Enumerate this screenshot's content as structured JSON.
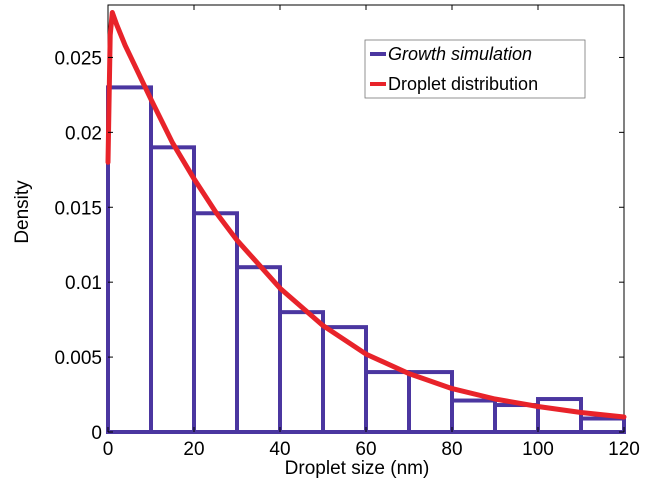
{
  "chart_data": {
    "type": "bar",
    "xlabel": "Droplet size (nm)",
    "ylabel": "Density",
    "xlim": [
      0,
      120
    ],
    "ylim": [
      0,
      0.0285
    ],
    "x_ticks": [
      0,
      20,
      40,
      60,
      80,
      100,
      120
    ],
    "x_tick_labels": [
      "0",
      "20",
      "40",
      "60",
      "80",
      "100",
      "120"
    ],
    "y_ticks": [
      0,
      0.005,
      0.01,
      0.015,
      0.02,
      0.025
    ],
    "y_tick_labels": [
      "0",
      "0.005",
      "0.01",
      "0.015",
      "0.02",
      "0.025"
    ],
    "grid": false,
    "legend_position": "top-right",
    "series": [
      {
        "name": "Growth simulation",
        "kind": "histogram",
        "color": "#4b36a0",
        "bin_edges": [
          0,
          10,
          20,
          30,
          40,
          50,
          60,
          70,
          80,
          90,
          100,
          110,
          120
        ],
        "values": [
          0.023,
          0.019,
          0.0146,
          0.011,
          0.008,
          0.007,
          0.004,
          0.004,
          0.0021,
          0.0018,
          0.0022,
          0.0009
        ]
      },
      {
        "name": "Droplet distribution",
        "kind": "line",
        "color": "#e8232a",
        "x": [
          0,
          0.5,
          1,
          2,
          4,
          6,
          10,
          15,
          20,
          25,
          30,
          40,
          50,
          60,
          70,
          80,
          90,
          100,
          110,
          120
        ],
        "values": [
          0.018,
          0.0265,
          0.028,
          0.0272,
          0.0258,
          0.0246,
          0.0222,
          0.0193,
          0.0169,
          0.0147,
          0.0128,
          0.0096,
          0.0071,
          0.0052,
          0.0039,
          0.0029,
          0.0022,
          0.0017,
          0.0013,
          0.001
        ]
      }
    ]
  }
}
